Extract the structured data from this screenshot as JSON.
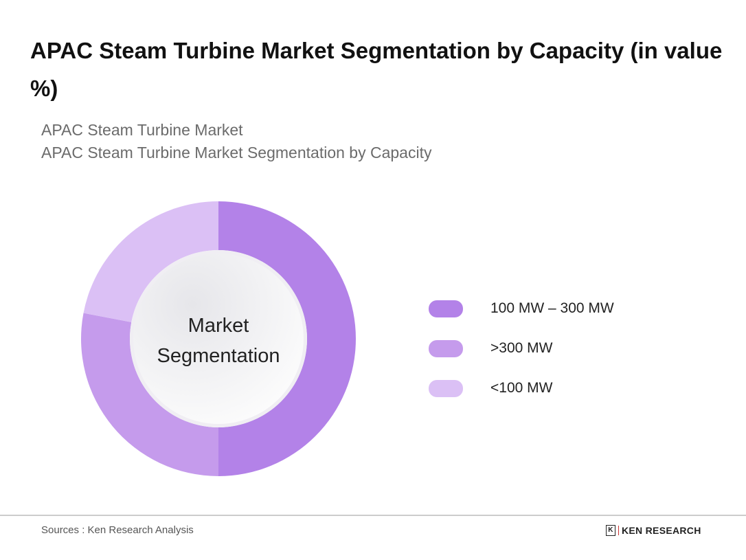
{
  "title": "APAC Steam Turbine Market Segmentation by Capacity (in value %)",
  "subtitle_1": "APAC Steam Turbine Market",
  "subtitle_2": "APAC Steam Turbine Market Segmentation by Capacity",
  "chart_data": {
    "type": "pie",
    "variant": "donut",
    "center_label_1": "Market",
    "center_label_2": "Segmentation",
    "categories": [
      "100 MW – 300 MW",
      ">300 MW",
      "<100 MW"
    ],
    "values": [
      50,
      28,
      22
    ],
    "colors": [
      "#b382e8",
      "#c59bec",
      "#dbc0f5"
    ],
    "legend_position": "right"
  },
  "footer": {
    "source": "Sources : Ken Research Analysis",
    "logo_text": "KEN RESEARCH"
  }
}
